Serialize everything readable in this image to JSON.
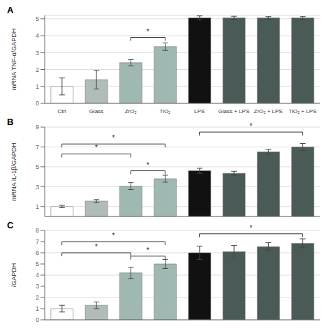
{
  "chart_data": [
    {
      "type": "bar",
      "title": "A",
      "ylabel": "mRNA TNF-α/GAPDH",
      "categories": [
        "Ctrl",
        "Glass",
        "ZrO₂",
        "TiO₂",
        "LPS",
        "Glass + LPS",
        "ZrO₂ + LPS",
        "TiO₂ + LPS"
      ],
      "values": [
        1.0,
        1.4,
        2.4,
        3.35,
        5.05,
        5.05,
        5.05,
        5.05
      ],
      "errors": [
        0.5,
        0.55,
        0.18,
        0.22,
        0.12,
        0.1,
        0.08,
        0.08
      ],
      "colors": [
        "#ffffff",
        "#b0bcb8",
        "#9fb8b2",
        "#9fb8b2",
        "#111111",
        "#4a5a57",
        "#4a5a57",
        "#4a5a57"
      ],
      "ylim": [
        0,
        5.2
      ],
      "yticks": [
        0,
        1,
        2,
        3,
        4,
        5
      ],
      "grid": true,
      "annotations": [
        {
          "label": "*",
          "x1": "ZrO₂",
          "x2": "TiO₂",
          "y": 3.9
        }
      ]
    },
    {
      "type": "bar",
      "title": "B",
      "ylabel": "mRNA IL-1β/GAPDH",
      "categories": [
        "Ctrl",
        "Glass",
        "ZrO₂",
        "TiO₂",
        "LPS",
        "Glass + LPS",
        "ZrO₂ + LPS",
        "TiO₂ + LPS"
      ],
      "values": [
        1.0,
        1.55,
        3.05,
        3.8,
        4.6,
        4.35,
        6.5,
        7.0
      ],
      "errors": [
        0.12,
        0.15,
        0.35,
        0.35,
        0.25,
        0.2,
        0.25,
        0.35
      ],
      "colors": [
        "#ffffff",
        "#b0bcb8",
        "#9fb8b2",
        "#9fb8b2",
        "#111111",
        "#4a5a57",
        "#4a5a57",
        "#4a5a57"
      ],
      "ylim": [
        0,
        9
      ],
      "yticks": [
        0,
        1,
        2,
        3,
        4,
        5,
        6,
        7,
        8,
        9
      ],
      "grid": true,
      "tick_labels": "y",
      "annotations": [
        {
          "label": "*",
          "x1": "Ctrl",
          "x2": "ZrO₂",
          "y": 6.3
        },
        {
          "label": "*",
          "x1": "Ctrl",
          "x2": "TiO₂",
          "y": 7.3
        },
        {
          "label": "*",
          "x1": "ZrO₂",
          "x2": "TiO₂",
          "y": 4.6
        },
        {
          "label": "*",
          "x1": "LPS",
          "x2": "TiO₂ + LPS",
          "y": 8.5
        }
      ]
    },
    {
      "type": "bar",
      "title": "C",
      "ylabel": "/GAPDH",
      "categories": [
        "Ctrl",
        "Glass",
        "ZrO₂",
        "TiO₂",
        "LPS",
        "Glass + LPS",
        "ZrO₂ + LPS",
        "TiO₂ + LPS"
      ],
      "values": [
        1.0,
        1.3,
        4.2,
        5.0,
        6.0,
        6.1,
        6.55,
        6.85
      ],
      "errors": [
        0.3,
        0.3,
        0.5,
        0.4,
        0.6,
        0.55,
        0.35,
        0.4
      ],
      "colors": [
        "#ffffff",
        "#b0bcb8",
        "#9fb8b2",
        "#9fb8b2",
        "#111111",
        "#4a5a57",
        "#4a5a57",
        "#4a5a57"
      ],
      "ylim": [
        0,
        8
      ],
      "yticks": [
        0,
        1,
        2,
        3,
        4,
        5,
        6,
        7,
        8
      ],
      "grid": true,
      "tick_labels": "y",
      "annotations": [
        {
          "label": "*",
          "x1": "Ctrl",
          "x2": "ZrO₂",
          "y": 6.0
        },
        {
          "label": "*",
          "x1": "Ctrl",
          "x2": "TiO₂",
          "y": 7.0
        },
        {
          "label": "*",
          "x1": "ZrO₂",
          "x2": "TiO₂",
          "y": 5.7
        },
        {
          "label": "*",
          "x1": "LPS",
          "x2": "TiO₂ + LPS",
          "y": 7.7
        }
      ]
    }
  ]
}
